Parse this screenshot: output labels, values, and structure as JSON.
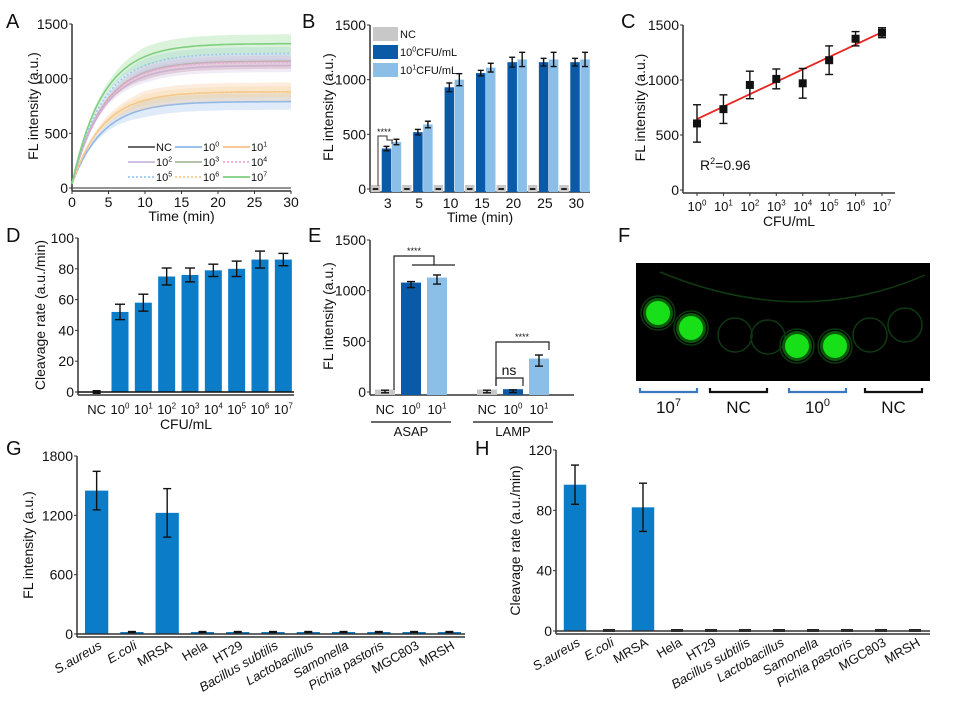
{
  "chart_data": [
    {
      "panel": "A",
      "type": "line",
      "xlabel": "Time (min)",
      "ylabel": "FL intensity (a.u.)",
      "xlim": [
        0,
        30
      ],
      "ylim": [
        0,
        1500
      ],
      "xticks": [
        "0",
        "5",
        "10",
        "15",
        "20",
        "25",
        "30"
      ],
      "yticks": [
        "0",
        "500",
        "1000",
        "1500"
      ],
      "legend_position": "bottom-right",
      "series": [
        {
          "name": "NC",
          "label_base": "NC",
          "label_sup": "",
          "color": "#555555",
          "plateau": 0,
          "band": 0,
          "style": "solid"
        },
        {
          "name": "10^0",
          "label_base": "10",
          "label_sup": "0",
          "color": "#8fb8e8",
          "plateau": 790,
          "band": 75,
          "style": "solid"
        },
        {
          "name": "10^1",
          "label_base": "10",
          "label_sup": "1",
          "color": "#f6c08a",
          "plateau": 880,
          "band": 85,
          "style": "solid"
        },
        {
          "name": "10^2",
          "label_base": "10",
          "label_sup": "2",
          "color": "#c9b6dc",
          "plateau": 1120,
          "band": 60,
          "style": "solid"
        },
        {
          "name": "10^3",
          "label_base": "10",
          "label_sup": "3",
          "color": "#a9b8a0",
          "plateau": 1160,
          "band": 70,
          "style": "solid"
        },
        {
          "name": "10^4",
          "label_base": "10",
          "label_sup": "4",
          "color": "#f2a7d9",
          "plateau": 1150,
          "band": 60,
          "style": "dotted"
        },
        {
          "name": "10^5",
          "label_base": "10",
          "label_sup": "5",
          "color": "#9cc8ee",
          "plateau": 1230,
          "band": 60,
          "style": "dotted"
        },
        {
          "name": "10^6",
          "label_base": "10",
          "label_sup": "6",
          "color": "#f4cf8f",
          "plateau": 880,
          "band": 50,
          "style": "dotted"
        },
        {
          "name": "10^7",
          "label_base": "10",
          "label_sup": "7",
          "color": "#7fcf7f",
          "plateau": 1320,
          "band": 85,
          "style": "solid"
        }
      ]
    },
    {
      "panel": "B",
      "type": "bar",
      "xlabel": "Time (min)",
      "ylabel": "FL intensity (a.u.)",
      "ylim": [
        0,
        1500
      ],
      "yticks": [
        "0",
        "500",
        "1000",
        "1500"
      ],
      "categories": [
        "3",
        "5",
        "10",
        "15",
        "20",
        "25",
        "30"
      ],
      "legend_position": "top-left",
      "series": [
        {
          "name": "NC",
          "label_base": "NC",
          "label_sup": "",
          "label_tail": "",
          "color": "#c8c8c8",
          "values": [
            0,
            0,
            0,
            0,
            0,
            0,
            0
          ],
          "errors": [
            5,
            5,
            5,
            5,
            5,
            5,
            5
          ]
        },
        {
          "name": "10^0 CFU/mL",
          "label_base": "10",
          "label_sup": "0",
          "label_tail": "CFU/mL",
          "color": "#0a5aa8",
          "values": [
            370,
            520,
            930,
            1060,
            1160,
            1160,
            1160
          ],
          "errors": [
            20,
            25,
            40,
            25,
            45,
            35,
            35
          ]
        },
        {
          "name": "10^1 CFU/mL",
          "label_base": "10",
          "label_sup": "1",
          "label_tail": "CFU/mL",
          "color": "#8bbfe8",
          "values": [
            430,
            590,
            1000,
            1110,
            1185,
            1185,
            1185
          ],
          "errors": [
            25,
            30,
            55,
            40,
            65,
            65,
            65
          ]
        }
      ],
      "annotations": [
        {
          "text": "****",
          "between": "NC vs 10^0/10^1 at 3 min"
        }
      ]
    },
    {
      "panel": "C",
      "type": "scatter",
      "xlabel": "CFU/mL",
      "ylabel": "FL intensity (a.u.)",
      "ylim": [
        0,
        1500
      ],
      "yticks": [
        "0",
        "500",
        "1000",
        "1500"
      ],
      "x": [
        0,
        1,
        2,
        3,
        4,
        5,
        6,
        7
      ],
      "xtick_base": "10",
      "xtick_sups": [
        "0",
        "1",
        "2",
        "3",
        "4",
        "5",
        "6",
        "7"
      ],
      "y": [
        605,
        735,
        955,
        1010,
        970,
        1180,
        1375,
        1430
      ],
      "errors": [
        170,
        130,
        125,
        90,
        135,
        130,
        65,
        45
      ],
      "fit_line": {
        "color": "#e8251f",
        "y_start": 645,
        "y_end": 1435
      },
      "annotation_base": "R",
      "annotation_sup": "2",
      "annotation_tail": "=0.96"
    },
    {
      "panel": "D",
      "type": "bar",
      "xlabel": "CFU/mL",
      "ylabel": "Cleavage rate (a.u./min)",
      "ylim": [
        0,
        100
      ],
      "yticks": [
        "0",
        "20",
        "40",
        "60",
        "80",
        "100"
      ],
      "categories": [
        {
          "base": "NC",
          "sup": ""
        },
        {
          "base": "10",
          "sup": "0"
        },
        {
          "base": "10",
          "sup": "1"
        },
        {
          "base": "10",
          "sup": "2"
        },
        {
          "base": "10",
          "sup": "3"
        },
        {
          "base": "10",
          "sup": "4"
        },
        {
          "base": "10",
          "sup": "5"
        },
        {
          "base": "10",
          "sup": "6"
        },
        {
          "base": "10",
          "sup": "7"
        }
      ],
      "color": "#0a7cc8",
      "values": [
        0,
        52,
        58,
        75,
        76,
        79,
        80,
        86,
        86
      ],
      "errors": [
        0.6,
        5,
        5.5,
        5.5,
        4.5,
        4,
        5,
        5.5,
        4
      ]
    },
    {
      "panel": "E",
      "type": "bar",
      "ylabel": "FL intensity (a.u.)",
      "ylim": [
        0,
        1500
      ],
      "yticks": [
        "0",
        "500",
        "1000",
        "1500"
      ],
      "groups": [
        {
          "name": "ASAP",
          "bars": [
            {
              "base": "NC",
              "sup": "",
              "color": "#c8c8c8",
              "value": 5,
              "error": 3
            },
            {
              "base": "10",
              "sup": "0",
              "color": "#0a5aa8",
              "value": 1060,
              "error": 20
            },
            {
              "base": "10",
              "sup": "1",
              "color": "#8bbfe8",
              "value": 1110,
              "error": 35
            }
          ]
        },
        {
          "name": "LAMP",
          "bars": [
            {
              "base": "NC",
              "sup": "",
              "color": "#c8c8c8",
              "value": 5,
              "error": 3
            },
            {
              "base": "10",
              "sup": "0",
              "color": "#0a5aa8",
              "value": 8,
              "error": 3
            },
            {
              "base": "10",
              "sup": "1",
              "color": "#8bbfe8",
              "value": 310,
              "error": 45
            }
          ]
        }
      ],
      "annotations": [
        {
          "text": "****",
          "group": "ASAP"
        },
        {
          "text": "****",
          "group": "LAMP"
        },
        {
          "text": "ns",
          "group": "LAMP"
        }
      ]
    },
    {
      "panel": "G",
      "type": "bar",
      "ylabel": "FL intensity (a.u.)",
      "ylim": [
        0,
        1800
      ],
      "yticks": [
        "0",
        "600",
        "1200",
        "1800"
      ],
      "categories": [
        "S.aureus",
        "E.coli",
        "MRSA",
        "Hela",
        "HT29",
        "Bacillus subtilis",
        "Lactobacillus",
        "Samonella",
        "Pichia pastoris",
        "MGC803",
        "MRSH"
      ],
      "italic": [
        true,
        true,
        false,
        false,
        false,
        true,
        true,
        true,
        true,
        false,
        false
      ],
      "color": "#0a7cc8",
      "values": [
        1450,
        20,
        1225,
        20,
        20,
        20,
        20,
        20,
        20,
        20,
        20
      ],
      "errors": [
        195,
        5,
        245,
        5,
        5,
        5,
        5,
        5,
        5,
        5,
        5
      ]
    },
    {
      "panel": "H",
      "type": "bar",
      "ylabel": "Cleavage rate (a.u./min)",
      "ylim": [
        0,
        120
      ],
      "yticks": [
        "0",
        "40",
        "80",
        "120"
      ],
      "categories": [
        "S.aureus",
        "E.coli",
        "MRSA",
        "Hela",
        "HT29",
        "Bacillus subtilis",
        "Lactobacillus",
        "Samonella",
        "Pichia pastoris",
        "MGC803",
        "MRSH"
      ],
      "italic": [
        true,
        true,
        false,
        false,
        false,
        true,
        true,
        true,
        true,
        false,
        false
      ],
      "color": "#0a7cc8",
      "values": [
        97,
        0,
        82,
        0,
        0,
        0,
        0,
        0,
        0,
        0,
        0
      ],
      "errors": [
        13,
        0.3,
        16,
        0.3,
        0.3,
        0.6,
        0.3,
        0.6,
        0.3,
        0.3,
        0.3
      ]
    }
  ],
  "panel_letters": [
    "A",
    "B",
    "C",
    "D",
    "E",
    "F",
    "G",
    "H"
  ],
  "image_panel": {
    "panel": "F",
    "description": "fluorescence image of tubes",
    "labels": [
      {
        "base": "10",
        "sup": "7",
        "bracket_color": "#3a78c0"
      },
      {
        "base": "NC",
        "sup": "",
        "bracket_color": "#111111"
      },
      {
        "base": "10",
        "sup": "0",
        "bracket_color": "#3a78c0"
      },
      {
        "base": "NC",
        "sup": "",
        "bracket_color": "#111111"
      }
    ]
  }
}
